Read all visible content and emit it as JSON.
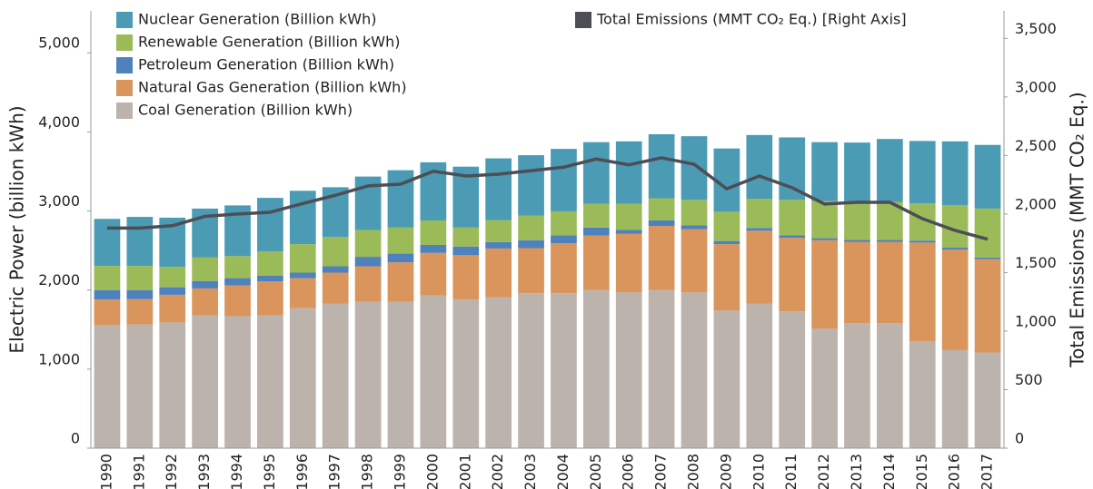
{
  "chart_data": {
    "type": "bar",
    "stacked": true,
    "categories": [
      "1990",
      "1991",
      "1992",
      "1993",
      "1994",
      "1995",
      "1996",
      "1997",
      "1998",
      "1999",
      "2000",
      "2001",
      "2002",
      "2003",
      "2004",
      "2005",
      "2006",
      "2007",
      "2008",
      "2009",
      "2010",
      "2011",
      "2012",
      "2013",
      "2014",
      "2015",
      "2016",
      "2017"
    ],
    "series": [
      {
        "name": "Coal Generation (Billion kWh)",
        "color": "#bcb3ad",
        "values": [
          1560,
          1565,
          1590,
          1680,
          1670,
          1680,
          1770,
          1830,
          1850,
          1850,
          1930,
          1880,
          1910,
          1960,
          1960,
          2000,
          1970,
          2000,
          1970,
          1740,
          1830,
          1730,
          1510,
          1580,
          1580,
          1350,
          1240,
          1210
        ]
      },
      {
        "name": "Natural Gas Generation (Billion kWh)",
        "color": "#d9955b",
        "values": [
          320,
          320,
          350,
          340,
          390,
          430,
          380,
          390,
          450,
          500,
          540,
          560,
          615,
          570,
          630,
          690,
          740,
          810,
          800,
          840,
          920,
          930,
          1120,
          1030,
          1030,
          1250,
          1270,
          1180
        ]
      },
      {
        "name": "Petroleum Generation (Billion kWh)",
        "color": "#4f81bd",
        "values": [
          120,
          115,
          95,
          95,
          90,
          70,
          70,
          80,
          120,
          110,
          100,
          110,
          80,
          100,
          100,
          100,
          50,
          70,
          50,
          40,
          35,
          30,
          25,
          25,
          25,
          25,
          25,
          20
        ]
      },
      {
        "name": "Renewable Generation (Billion kWh)",
        "color": "#9bbb59",
        "values": [
          305,
          305,
          260,
          300,
          280,
          310,
          360,
          370,
          340,
          330,
          310,
          240,
          280,
          310,
          305,
          300,
          330,
          280,
          320,
          370,
          370,
          450,
          470,
          460,
          480,
          470,
          540,
          620
        ]
      },
      {
        "name": "Nuclear Generation (Billion kWh)",
        "color": "#4a9bb3",
        "values": [
          595,
          620,
          620,
          615,
          640,
          675,
          675,
          630,
          675,
          725,
          735,
          770,
          780,
          765,
          790,
          780,
          790,
          810,
          805,
          800,
          805,
          790,
          745,
          770,
          795,
          790,
          805,
          805
        ]
      },
      {
        "name": "Total Emissions (MMT CO₂ Eq.) [Right Axis]",
        "color": "#4d4d55",
        "type": "line",
        "axis": "y2",
        "values": [
          1880,
          1880,
          1900,
          1980,
          2000,
          2015,
          2090,
          2160,
          2240,
          2255,
          2365,
          2325,
          2340,
          2370,
          2400,
          2470,
          2420,
          2480,
          2425,
          2215,
          2325,
          2225,
          2085,
          2100,
          2100,
          1960,
          1860,
          1785
        ]
      }
    ],
    "ylabel": "Electric Power (billion kWh)",
    "y2label": "Total Emissions (MMT CO₂ Eq.)",
    "ylim": [
      0,
      5530
    ],
    "yticks": [
      0,
      {
        "value": 1000,
        "label": "1,000"
      },
      {
        "value": 2000,
        "label": "2,000"
      },
      {
        "value": 3000,
        "label": "3,000"
      },
      {
        "value": 4000,
        "label": "4,000"
      },
      {
        "value": 5000,
        "label": "5,000"
      }
    ],
    "y2lim": [
      0,
      3735
    ],
    "y2ticks": [
      0,
      500,
      {
        "value": 1000,
        "label": "1,000"
      },
      {
        "value": 1500,
        "label": "1,500"
      },
      {
        "value": 2000,
        "label": "2,000"
      },
      {
        "value": 2500,
        "label": "2,500"
      },
      {
        "value": 3000,
        "label": "3,000"
      },
      {
        "value": 3500,
        "label": "3,500"
      }
    ],
    "grid": false
  }
}
